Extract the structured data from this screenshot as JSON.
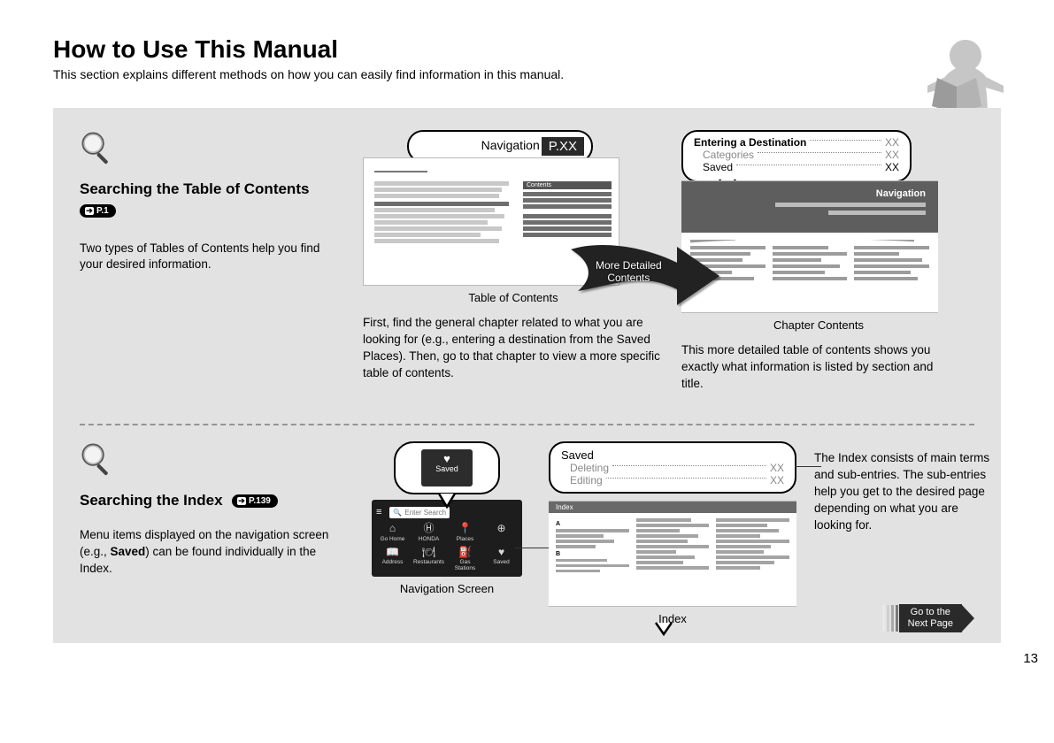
{
  "header": {
    "title": "How to Use This Manual",
    "subtitle": "This section explains different methods on how you can easily find information in this manual."
  },
  "section1": {
    "heading": "Searching the Table of Contents",
    "page_ref": "P.1",
    "description": "Two types of Tables of Contents help you find your desired information.",
    "nav_callout_label": "Navigation",
    "nav_callout_page": "P.XX",
    "toc_caption": "Table of Contents",
    "toc_body": "First, find the general chapter related to what you are looking for (e.g., entering a destination from the Saved Places). Then, go to that chapter to view a more specific table of contents.",
    "arrow_label_line1": "More Detailed",
    "arrow_label_line2": "Contents",
    "chapter_callout": {
      "title": "Entering a Destination",
      "title_page": "XX",
      "sub1": "Categories",
      "sub1_page": "XX",
      "sub2": "Saved",
      "sub2_page": "XX"
    },
    "chapter_header_label": "Navigation",
    "chapter_caption": "Chapter Contents",
    "chapter_body": "This more detailed table of contents shows you exactly what information is listed by section and title."
  },
  "section2": {
    "heading": "Searching the Index",
    "page_ref": "P.139",
    "description_pre": "Menu items displayed on the navigation screen (e.g., ",
    "description_bold": "Saved",
    "description_post": ") can be found individually in the Index.",
    "saved_label": "Saved",
    "nav_screen": {
      "search_placeholder": "Enter Search",
      "icons": [
        {
          "glyph": "⌂",
          "label": "Go Home"
        },
        {
          "glyph": "Ⓗ",
          "label": "HONDA"
        },
        {
          "glyph": "📍",
          "label": "Places"
        },
        {
          "glyph": "⊕",
          "label": ""
        },
        {
          "glyph": "📖",
          "label": "Address"
        },
        {
          "glyph": "🍽",
          "label": "Restaurants"
        },
        {
          "glyph": "⛽",
          "label": "Gas Stations"
        },
        {
          "glyph": "♥",
          "label": "Saved"
        }
      ],
      "caption": "Navigation Screen"
    },
    "index_callout": {
      "title": "Saved",
      "sub1": "Deleting",
      "sub1_page": "XX",
      "sub2": "Editing",
      "sub2_page": "XX"
    },
    "mini_index_header": "Index",
    "index_caption": "Index",
    "explanation": "The Index consists of main terms and sub-entries. The sub-entries help you get to the desired page depending on what you are looking for."
  },
  "footer": {
    "next_line1": "Go to the",
    "next_line2": "Next Page",
    "page_number": "13"
  },
  "colors": {
    "content_bg": "#e2e2e2",
    "dark": "#2a2a2a",
    "mid_gray": "#6a6a6a"
  }
}
